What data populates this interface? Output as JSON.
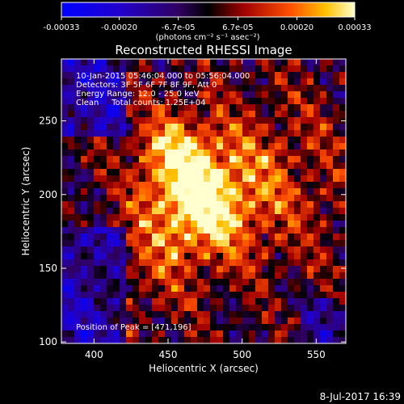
{
  "colorbar": {
    "tick_labels": [
      "-0.00033",
      "-0.00020",
      "-6.7e-05",
      "6.7e-05",
      "0.00020",
      "0.00033"
    ],
    "tick_values": [
      -0.00033,
      -0.0002,
      -6.7e-05,
      6.7e-05,
      0.0002,
      0.00033
    ],
    "range": [
      -0.00033,
      0.00033
    ],
    "units_label": "(photons cm⁻² s⁻¹ asec⁻²)"
  },
  "chart_data": {
    "type": "heatmap",
    "title": "Reconstructed RHESSI Image",
    "xlabel": "Heliocentric X (arcsec)",
    "ylabel": "Heliocentric Y (arcsec)",
    "xlim": [
      378,
      570
    ],
    "ylim": [
      99,
      292
    ],
    "x_ticks": [
      400,
      450,
      500,
      550
    ],
    "x_tick_labels": [
      "400",
      "450",
      "500",
      "550"
    ],
    "y_ticks": [
      100,
      150,
      200,
      250
    ],
    "y_tick_labels": [
      "100",
      "150",
      "200",
      "250"
    ],
    "peak_position": [
      471,
      196
    ],
    "annotations": {
      "time_range": "10-Jan-2015 05:46:04.000 to 05:56:04.000",
      "detectors": "Detectors: 3F 5F 6F 7F 8F 9F, Att 0",
      "energy": "Energy Range: 12.0 - 25.0 keV",
      "clean": "Clean     Total counts: 1.25E+04",
      "peak": "Position of Peak = [471,196]"
    }
  },
  "footer": {
    "date": "8-Jul-2017 16:39"
  }
}
